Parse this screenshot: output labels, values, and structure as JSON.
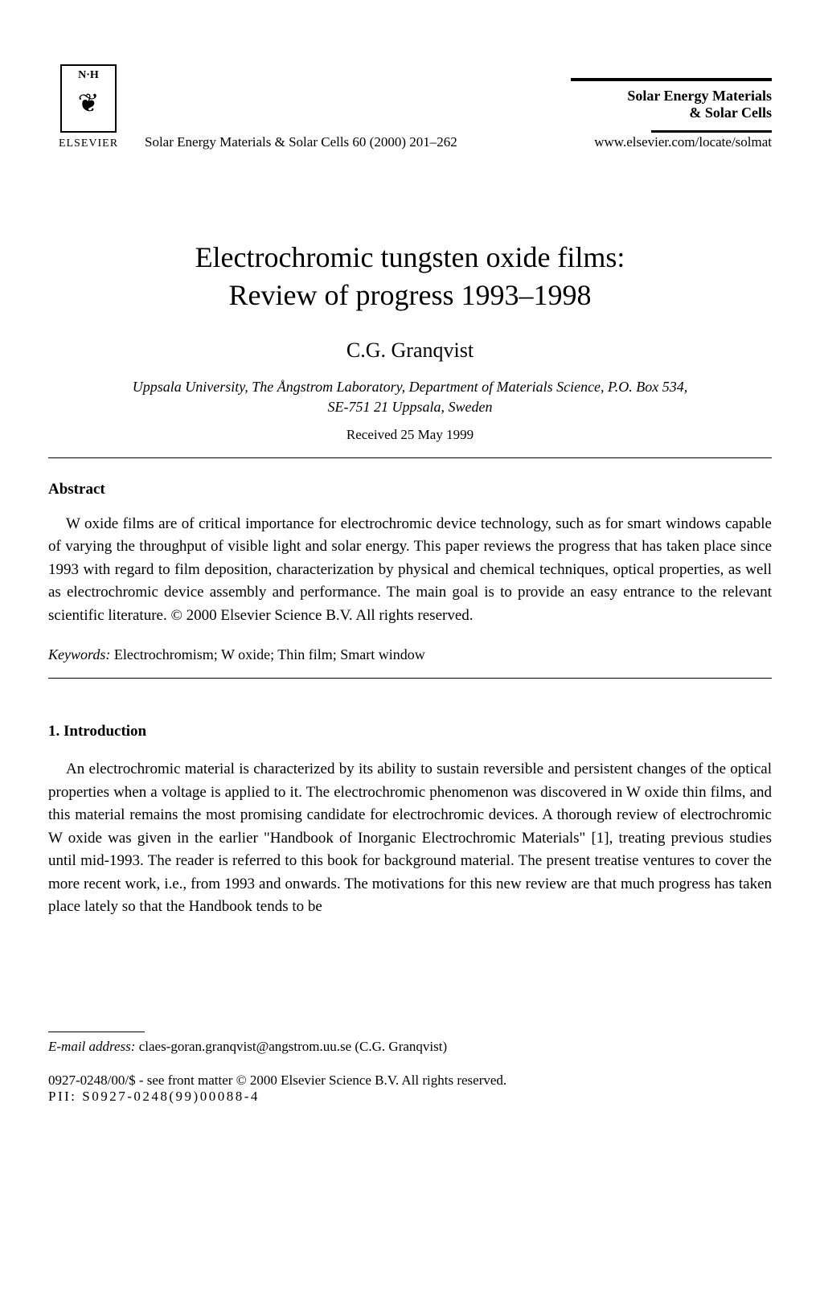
{
  "header": {
    "publisher_initials": "N·H",
    "publisher_name": "ELSEVIER",
    "journal_reference": "Solar Energy Materials & Solar Cells 60 (2000) 201–262",
    "journal_title_line1": "Solar Energy Materials",
    "journal_title_line2": "& Solar Cells",
    "journal_url": "www.elsevier.com/locate/solmat"
  },
  "article": {
    "title_line1": "Electrochromic tungsten oxide films:",
    "title_line2": "Review of progress 1993–1998",
    "author": "C.G. Granqvist",
    "affiliation_line1": "Uppsala University, The Ångstrom Laboratory, Department of Materials Science, P.O. Box 534,",
    "affiliation_line2": "SE-751 21 Uppsala, Sweden",
    "received": "Received 25 May 1999"
  },
  "abstract": {
    "heading": "Abstract",
    "text": "W oxide films are of critical importance for electrochromic device technology, such as for smart windows capable of varying the throughput of visible light and solar energy. This paper reviews the progress that has taken place since 1993 with regard to film deposition, characterization by physical and chemical techniques, optical properties, as well as electrochromic device assembly and performance. The main goal is to provide an easy entrance to the relevant scientific literature. © 2000 Elsevier Science B.V. All rights reserved."
  },
  "keywords": {
    "label": "Keywords:",
    "text": " Electrochromism; W oxide; Thin film; Smart window"
  },
  "section1": {
    "heading": "1. Introduction",
    "paragraph1": "An electrochromic material is characterized by its ability to sustain reversible and persistent changes of the optical properties when a voltage is applied to it. The electrochromic phenomenon was discovered in W oxide thin films, and this material remains the most promising candidate for electrochromic devices. A thorough review of electrochromic W oxide was given in the earlier \"Handbook of Inorganic Electrochromic Materials\" [1], treating previous studies until mid-1993. The reader is referred to this book for background material. The present treatise ventures to cover the more recent work, i.e., from 1993 and onwards. The motivations for this new review are that much progress has taken place lately so that the Handbook tends to be"
  },
  "footnote": {
    "label": "E-mail address:",
    "text": " claes-goran.granqvist@angstrom.uu.se (C.G. Granqvist)"
  },
  "footer": {
    "copyright": "0927-0248/00/$ - see front matter © 2000 Elsevier Science B.V. All rights reserved.",
    "pii": "PII: S0927-0248(99)00088-4"
  },
  "style": {
    "background_color": "#ffffff",
    "text_color": "#000000",
    "title_fontsize": 36,
    "author_fontsize": 26,
    "body_fontsize": 19,
    "footnote_fontsize": 17
  }
}
